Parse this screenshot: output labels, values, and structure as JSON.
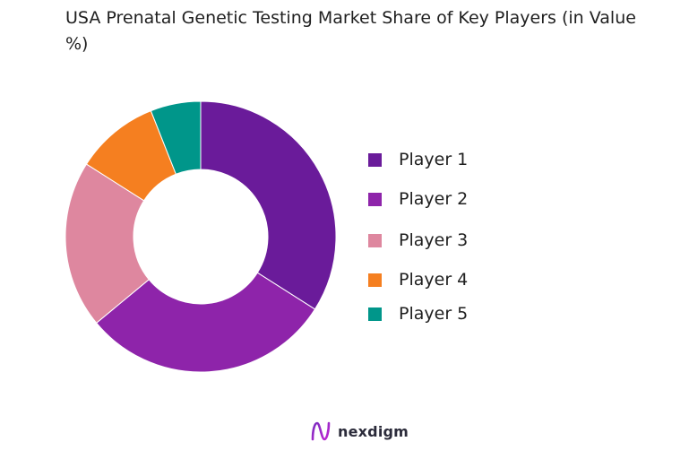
{
  "chart_data": {
    "type": "pie",
    "title": "USA Prenatal  Genetic Testing Market Share of Key Players (in Value %)",
    "categories": [
      "Player 1",
      "Player 2",
      "Player 3",
      "Player 4",
      "Player 5"
    ],
    "values": [
      34,
      30,
      20,
      10,
      6
    ],
    "colors": [
      "#6a1b9a",
      "#8e24aa",
      "#de879f",
      "#f57f20",
      "#00968a"
    ],
    "legend_position": "right"
  },
  "brand": {
    "name": "nexdigm",
    "logo_icon": "nexdigm-logo-icon"
  }
}
